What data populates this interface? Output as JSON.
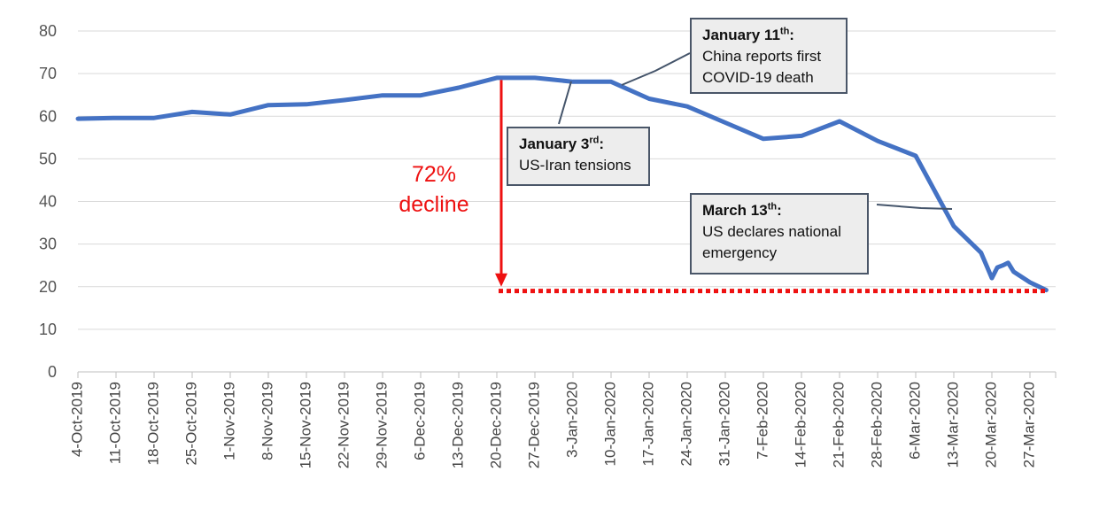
{
  "chart_data": {
    "type": "line",
    "title": "",
    "xlabel": "",
    "ylabel": "",
    "ylim": [
      0,
      80
    ],
    "yticks": [
      "0",
      "10",
      "20",
      "30",
      "40",
      "50",
      "60",
      "70",
      "80"
    ],
    "xticks": [
      "4-Oct-2019",
      "11-Oct-2019",
      "18-Oct-2019",
      "25-Oct-2019",
      "1-Nov-2019",
      "8-Nov-2019",
      "15-Nov-2019",
      "22-Nov-2019",
      "29-Nov-2019",
      "6-Dec-2019",
      "13-Dec-2019",
      "20-Dec-2019",
      "27-Dec-2019",
      "3-Jan-2020",
      "10-Jan-2020",
      "17-Jan-2020",
      "24-Jan-2020",
      "31-Jan-2020",
      "7-Feb-2020",
      "14-Feb-2020",
      "21-Feb-2020",
      "28-Feb-2020",
      "6-Mar-2020",
      "13-Mar-2020",
      "20-Mar-2020",
      "27-Mar-2020"
    ],
    "grid": true,
    "colors": {
      "line": "#4472c4",
      "decline": "#ee1111",
      "grid": "#d9d9d9",
      "axis": "#bfbfbf"
    },
    "series": [
      {
        "x": [
          "2019-10-04",
          "2019-10-11",
          "2019-10-18",
          "2019-10-25",
          "2019-11-01",
          "2019-11-08",
          "2019-11-15",
          "2019-11-22",
          "2019-11-29",
          "2019-12-06",
          "2019-12-13",
          "2019-12-20",
          "2019-12-27",
          "2020-01-03",
          "2020-01-10",
          "2020-01-17",
          "2020-01-24",
          "2020-01-31",
          "2020-02-07",
          "2020-02-14",
          "2020-02-21",
          "2020-02-28",
          "2020-03-06",
          "2020-03-13",
          "2020-03-18",
          "2020-03-19",
          "2020-03-20",
          "2020-03-21",
          "2020-03-22",
          "2020-03-23",
          "2020-03-24",
          "2020-03-27",
          "2020-03-30"
        ],
        "values": [
          59.4,
          59.6,
          59.6,
          61.0,
          60.4,
          62.6,
          62.8,
          63.8,
          64.9,
          64.9,
          66.7,
          69.0,
          69.0,
          68.1,
          68.1,
          64.1,
          62.3,
          58.5,
          54.7,
          55.4,
          58.8,
          54.2,
          50.7,
          34.2,
          28.0,
          25.0,
          22.0,
          24.5,
          25.0,
          25.6,
          23.5,
          21.0,
          19.2
        ]
      }
    ],
    "decline": {
      "label_line1": "72%",
      "label_line2": "decline",
      "from_date": "2019-12-20",
      "from_value": 68.5,
      "to_value": 20.0,
      "floor_value": 19.2,
      "floor_start": "2019-12-20",
      "floor_end": "2020-03-30"
    },
    "annotations": [
      {
        "heading": "January 3",
        "sup": "rd",
        "colon": ":",
        "line1": "US-Iran tensions",
        "line2": ""
      },
      {
        "heading": "January 11",
        "sup": "th",
        "colon": ":",
        "line1": "China reports first",
        "line2": "COVID-19 death"
      },
      {
        "heading": "March 13",
        "sup": "th",
        "colon": ":",
        "line1": "US declares national",
        "line2": "emergency"
      }
    ]
  }
}
